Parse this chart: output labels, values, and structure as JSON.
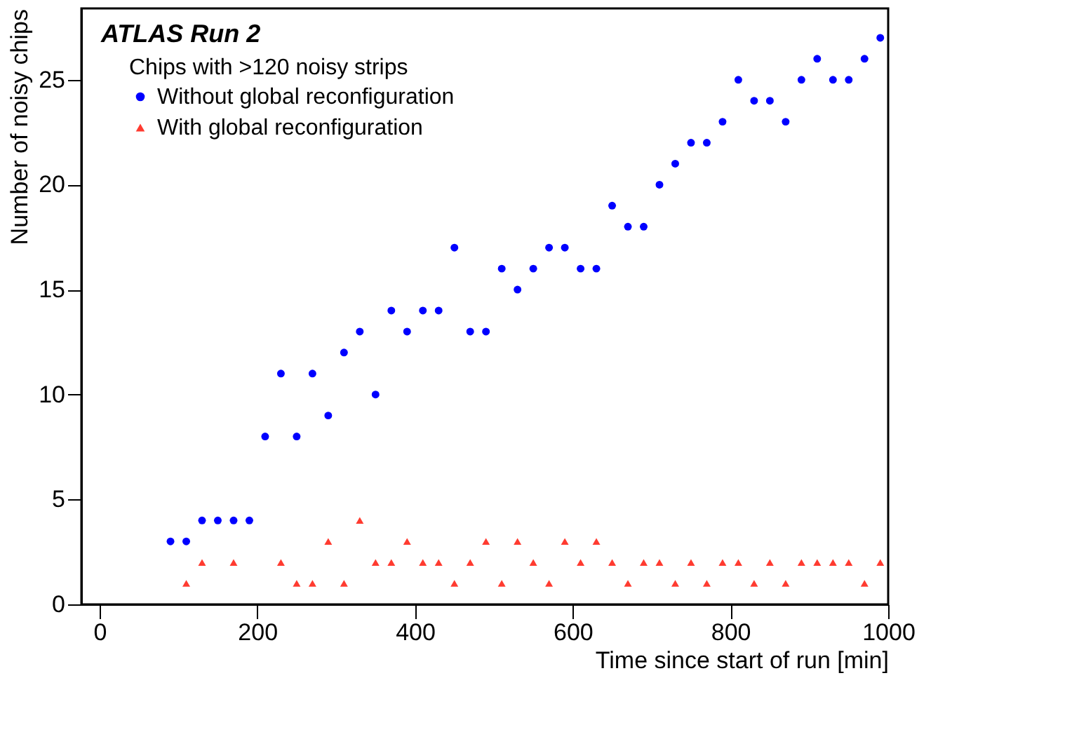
{
  "chart_data": {
    "type": "scatter",
    "xlabel": "Time since start of run [min]",
    "ylabel": "Number of noisy chips",
    "legend_title": "Chips with >120 noisy strips",
    "annotations": [
      "ATLAS Run 2"
    ],
    "xlim": [
      -23,
      1000
    ],
    "ylim": [
      0,
      28.4
    ],
    "xticks": [
      0,
      200,
      400,
      600,
      800,
      1000
    ],
    "yticks": [
      0,
      5,
      10,
      15,
      20,
      25
    ],
    "grid": false,
    "legend": "top left",
    "series": [
      {
        "name": "Without global reconfiguration",
        "color": "#0000ff",
        "marker": "circle",
        "x": [
          90,
          110,
          130,
          150,
          170,
          190,
          210,
          230,
          250,
          270,
          290,
          310,
          330,
          350,
          370,
          390,
          410,
          430,
          450,
          470,
          490,
          510,
          530,
          550,
          570,
          590,
          610,
          630,
          650,
          670,
          690,
          710,
          730,
          750,
          770,
          790,
          810,
          830,
          850,
          870,
          890,
          910,
          930,
          950,
          970,
          990
        ],
        "values": [
          3,
          3,
          4,
          4,
          4,
          4,
          8,
          11,
          8,
          11,
          9,
          12,
          13,
          10,
          14,
          13,
          14,
          14,
          17,
          13,
          13,
          16,
          15,
          16,
          17,
          17,
          16,
          16,
          19,
          18,
          18,
          20,
          21,
          22,
          22,
          23,
          25,
          24,
          24,
          23,
          25,
          26,
          25,
          25,
          26,
          27
        ]
      },
      {
        "name": "With global reconfiguration",
        "color": "#ff3b30",
        "marker": "triangle",
        "x": [
          110,
          130,
          170,
          230,
          250,
          270,
          290,
          310,
          330,
          350,
          370,
          390,
          410,
          430,
          450,
          470,
          490,
          510,
          530,
          550,
          570,
          590,
          610,
          630,
          650,
          670,
          690,
          710,
          730,
          750,
          770,
          790,
          810,
          830,
          850,
          870,
          890,
          910,
          930,
          950,
          970,
          990
        ],
        "values": [
          1,
          2,
          2,
          2,
          1,
          1,
          3,
          1,
          4,
          2,
          2,
          3,
          2,
          2,
          1,
          2,
          3,
          1,
          3,
          2,
          1,
          3,
          2,
          3,
          2,
          1,
          2,
          2,
          1,
          2,
          1,
          2,
          2,
          1,
          2,
          1,
          2,
          2,
          2,
          2,
          1,
          2
        ]
      }
    ]
  }
}
